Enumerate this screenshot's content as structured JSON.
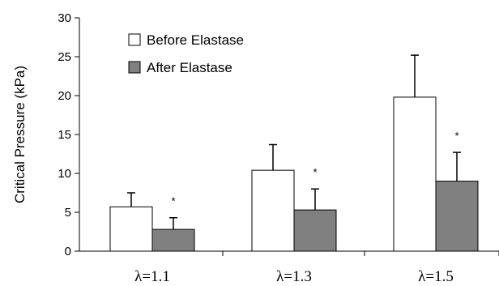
{
  "chart_data": {
    "type": "bar",
    "ylabel": "Critical Pressure (kPa)",
    "xlabel": "",
    "ylim": [
      0,
      30
    ],
    "yticks": [
      0,
      5,
      10,
      15,
      20,
      25,
      30
    ],
    "categories": [
      "λ=1.1",
      "λ=1.3",
      "λ=1.5"
    ],
    "legend_position": "top-left",
    "grid": false,
    "series": [
      {
        "name": "Before Elastase",
        "color": "#ffffff",
        "values": [
          5.7,
          10.4,
          19.8
        ],
        "errors": [
          1.8,
          3.3,
          5.4
        ]
      },
      {
        "name": "After Elastase",
        "color": "#808080",
        "values": [
          2.8,
          5.3,
          9.0
        ],
        "errors": [
          1.5,
          2.7,
          3.7
        ]
      }
    ],
    "annotations": [
      {
        "category": "λ=1.1",
        "series": "After Elastase",
        "text": "*"
      },
      {
        "category": "λ=1.3",
        "series": "After Elastase",
        "text": "*"
      },
      {
        "category": "λ=1.5",
        "series": "After Elastase",
        "text": "*"
      }
    ]
  }
}
